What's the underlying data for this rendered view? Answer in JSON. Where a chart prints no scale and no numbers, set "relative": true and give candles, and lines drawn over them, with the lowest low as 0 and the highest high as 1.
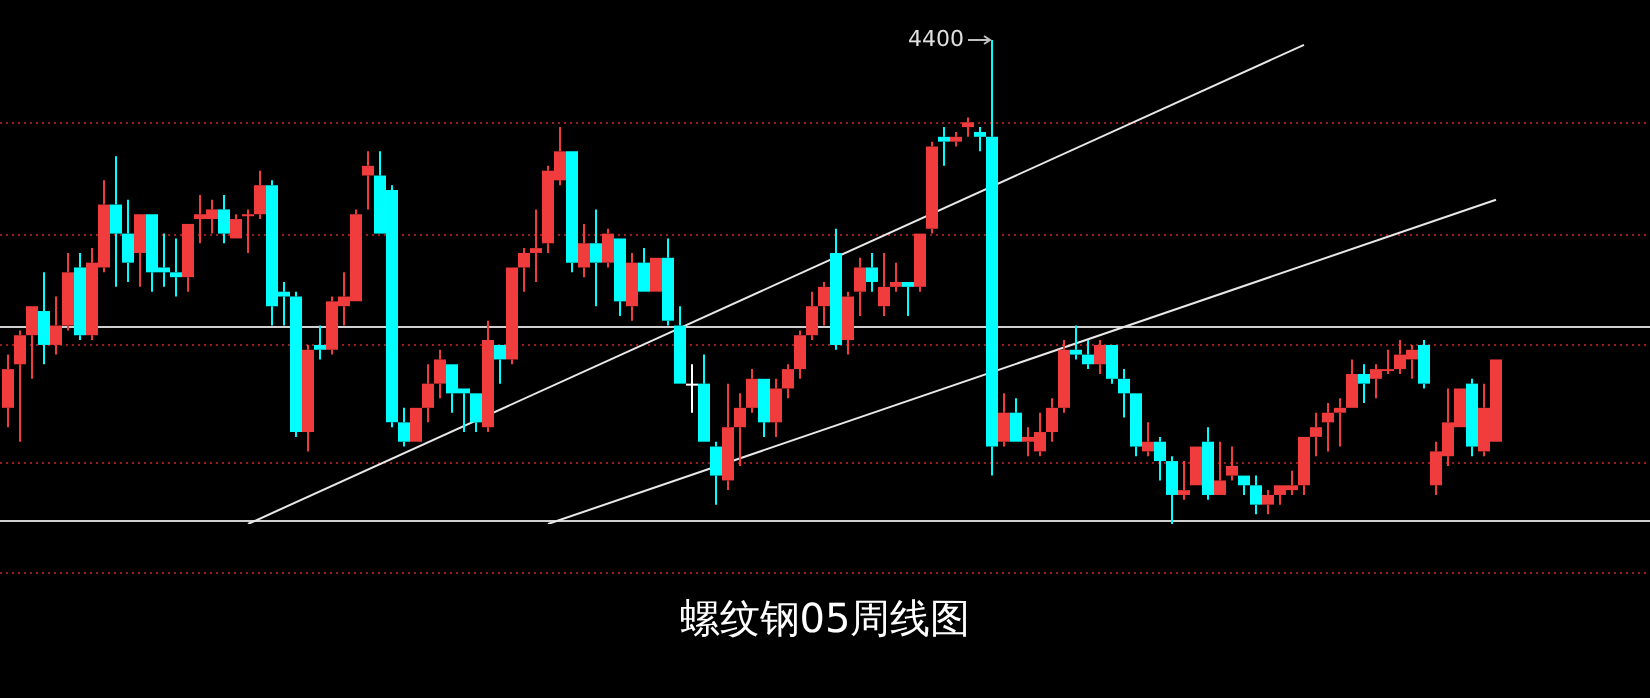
{
  "chart_data": {
    "type": "candlestick",
    "title": "螺纹钢05周线图",
    "relative": true,
    "legend": false,
    "categories": [
      null,
      null,
      null,
      null,
      null,
      null,
      null,
      null,
      null,
      null,
      null,
      null,
      null,
      null,
      null,
      null,
      null,
      null,
      null,
      null,
      null,
      null,
      null,
      null,
      null,
      null,
      null,
      null,
      null,
      null,
      null,
      null,
      null,
      null,
      null,
      null,
      null,
      null,
      null,
      null,
      null,
      null,
      null,
      null,
      null,
      null,
      null,
      null,
      null,
      null,
      null,
      null,
      null,
      null,
      null,
      null,
      null,
      null,
      null,
      null,
      null,
      null,
      null,
      null,
      null,
      null,
      null,
      null,
      null,
      null,
      null,
      null,
      null,
      null,
      null,
      null,
      null,
      null,
      null,
      null,
      null,
      null,
      null,
      null,
      null,
      null,
      null,
      null,
      null,
      null,
      null,
      null,
      null,
      null,
      null,
      null,
      null,
      null,
      null,
      null,
      null,
      null,
      null,
      null,
      null,
      null,
      null,
      null,
      null,
      null,
      null,
      null,
      null,
      null,
      null,
      null,
      null,
      null,
      null,
      null,
      null,
      null,
      null,
      null,
      null
    ],
    "ohlc": [
      [
        0.24,
        0.35,
        0.2,
        0.32
      ],
      [
        0.33,
        0.4,
        0.17,
        0.39
      ],
      [
        0.39,
        0.45,
        0.3,
        0.45
      ],
      [
        0.44,
        0.52,
        0.33,
        0.37
      ],
      [
        0.37,
        0.47,
        0.35,
        0.41
      ],
      [
        0.41,
        0.56,
        0.4,
        0.52
      ],
      [
        0.53,
        0.56,
        0.38,
        0.39
      ],
      [
        0.39,
        0.57,
        0.38,
        0.54
      ],
      [
        0.53,
        0.71,
        0.52,
        0.66
      ],
      [
        0.66,
        0.76,
        0.49,
        0.6
      ],
      [
        0.6,
        0.67,
        0.5,
        0.54
      ],
      [
        0.56,
        0.64,
        0.49,
        0.64
      ],
      [
        0.64,
        0.64,
        0.48,
        0.52
      ],
      [
        0.53,
        0.6,
        0.49,
        0.52
      ],
      [
        0.52,
        0.59,
        0.47,
        0.51
      ],
      [
        0.51,
        0.62,
        0.48,
        0.62
      ],
      [
        0.63,
        0.68,
        0.58,
        0.64
      ],
      [
        0.63,
        0.67,
        0.6,
        0.65
      ],
      [
        0.65,
        0.68,
        0.58,
        0.6
      ],
      [
        0.59,
        0.64,
        0.59,
        0.63
      ],
      [
        0.64,
        0.65,
        0.56,
        0.64
      ],
      [
        0.64,
        0.73,
        0.63,
        0.7
      ],
      [
        0.7,
        0.71,
        0.41,
        0.45
      ],
      [
        0.48,
        0.5,
        0.41,
        0.47
      ],
      [
        0.47,
        0.48,
        0.18,
        0.19
      ],
      [
        0.19,
        0.37,
        0.15,
        0.36
      ],
      [
        0.37,
        0.41,
        0.34,
        0.36
      ],
      [
        0.36,
        0.47,
        0.35,
        0.46
      ],
      [
        0.45,
        0.52,
        0.41,
        0.47
      ],
      [
        0.46,
        0.65,
        0.46,
        0.64
      ],
      [
        0.72,
        0.77,
        0.65,
        0.74
      ],
      [
        0.72,
        0.77,
        0.6,
        0.6
      ],
      [
        0.69,
        0.7,
        0.2,
        0.21
      ],
      [
        0.21,
        0.24,
        0.16,
        0.17
      ],
      [
        0.17,
        0.24,
        0.17,
        0.24
      ],
      [
        0.24,
        0.33,
        0.21,
        0.29
      ],
      [
        0.29,
        0.36,
        0.26,
        0.34
      ],
      [
        0.33,
        0.33,
        0.23,
        0.27
      ],
      [
        0.28,
        0.28,
        0.19,
        0.27
      ],
      [
        0.27,
        0.27,
        0.19,
        0.21
      ],
      [
        0.2,
        0.42,
        0.19,
        0.38
      ],
      [
        0.37,
        0.37,
        0.29,
        0.34
      ],
      [
        0.34,
        0.53,
        0.33,
        0.53
      ],
      [
        0.53,
        0.57,
        0.48,
        0.56
      ],
      [
        0.56,
        0.65,
        0.5,
        0.57
      ],
      [
        0.58,
        0.74,
        0.56,
        0.73
      ],
      [
        0.71,
        0.82,
        0.7,
        0.77
      ],
      [
        0.77,
        0.77,
        0.52,
        0.54
      ],
      [
        0.53,
        0.62,
        0.51,
        0.58
      ],
      [
        0.58,
        0.65,
        0.45,
        0.54
      ],
      [
        0.54,
        0.61,
        0.53,
        0.6
      ],
      [
        0.59,
        0.59,
        0.43,
        0.46
      ],
      [
        0.45,
        0.56,
        0.42,
        0.54
      ],
      [
        0.54,
        0.57,
        0.48,
        0.48
      ],
      [
        0.48,
        0.55,
        0.48,
        0.55
      ],
      [
        0.55,
        0.59,
        0.41,
        0.42
      ],
      [
        0.41,
        0.45,
        0.29,
        0.29
      ],
      [
        0.29,
        0.33,
        0.23,
        0.29
      ],
      [
        0.29,
        0.35,
        0.17,
        0.17
      ],
      [
        0.16,
        0.17,
        0.04,
        0.1
      ],
      [
        0.09,
        0.29,
        0.07,
        0.2
      ],
      [
        0.2,
        0.27,
        0.12,
        0.24
      ],
      [
        0.24,
        0.32,
        0.23,
        0.3
      ],
      [
        0.3,
        0.3,
        0.18,
        0.21
      ],
      [
        0.21,
        0.3,
        0.18,
        0.28
      ],
      [
        0.28,
        0.33,
        0.26,
        0.32
      ],
      [
        0.32,
        0.4,
        0.3,
        0.39
      ],
      [
        0.39,
        0.48,
        0.38,
        0.45
      ],
      [
        0.45,
        0.5,
        0.41,
        0.49
      ],
      [
        0.56,
        0.61,
        0.36,
        0.37
      ],
      [
        0.38,
        0.48,
        0.35,
        0.47
      ],
      [
        0.48,
        0.55,
        0.43,
        0.53
      ],
      [
        0.53,
        0.56,
        0.48,
        0.5
      ],
      [
        0.45,
        0.56,
        0.43,
        0.49
      ],
      [
        0.49,
        0.54,
        0.48,
        0.5
      ],
      [
        0.5,
        0.5,
        0.43,
        0.49
      ],
      [
        0.49,
        0.6,
        0.48,
        0.6
      ],
      [
        0.61,
        0.79,
        0.6,
        0.78
      ],
      [
        0.8,
        0.82,
        0.74,
        0.79
      ],
      [
        0.79,
        0.81,
        0.78,
        0.8
      ],
      [
        0.82,
        0.84,
        0.8,
        0.83
      ],
      [
        0.81,
        0.82,
        0.77,
        0.8
      ],
      [
        0.8,
        1,
        0.1,
        0.16
      ],
      [
        0.17,
        0.27,
        0.16,
        0.23
      ],
      [
        0.23,
        0.26,
        0.17,
        0.17
      ],
      [
        0.17,
        0.2,
        0.14,
        0.18
      ],
      [
        0.15,
        0.23,
        0.14,
        0.19
      ],
      [
        0.19,
        0.26,
        0.17,
        0.24
      ],
      [
        0.24,
        0.38,
        0.23,
        0.36
      ],
      [
        0.36,
        0.41,
        0.34,
        0.35
      ],
      [
        0.35,
        0.38,
        0.32,
        0.33
      ],
      [
        0.33,
        0.38,
        0.31,
        0.37
      ],
      [
        0.37,
        0.37,
        0.29,
        0.3
      ],
      [
        0.3,
        0.32,
        0.22,
        0.27
      ],
      [
        0.27,
        0.27,
        0.14,
        0.16
      ],
      [
        0.15,
        0.21,
        0.14,
        0.17
      ],
      [
        0.17,
        0.18,
        0.09,
        0.13
      ],
      [
        0.13,
        0.14,
        0,
        0.06
      ],
      [
        0.06,
        0.13,
        0.05,
        0.07
      ],
      [
        0.08,
        0.16,
        0.08,
        0.16
      ],
      [
        0.17,
        0.2,
        0.05,
        0.06
      ],
      [
        0.06,
        0.17,
        0.06,
        0.09
      ],
      [
        0.1,
        0.16,
        0.09,
        0.12
      ],
      [
        0.1,
        0.1,
        0.06,
        0.08
      ],
      [
        0.08,
        0.1,
        0.02,
        0.04
      ],
      [
        0.04,
        0.07,
        0.02,
        0.06
      ],
      [
        0.06,
        0.08,
        0.04,
        0.08
      ],
      [
        0.07,
        0.11,
        0.06,
        0.08
      ],
      [
        0.08,
        0.18,
        0.06,
        0.18
      ],
      [
        0.18,
        0.23,
        0.14,
        0.2
      ],
      [
        0.21,
        0.25,
        0.15,
        0.23
      ],
      [
        0.23,
        0.26,
        0.16,
        0.24
      ],
      [
        0.24,
        0.34,
        0.24,
        0.31
      ],
      [
        0.31,
        0.33,
        0.25,
        0.29
      ],
      [
        0.3,
        0.33,
        0.26,
        0.32
      ],
      [
        0.32,
        0.36,
        0.31,
        0.32
      ],
      [
        0.32,
        0.38,
        0.31,
        0.35
      ],
      [
        0.34,
        0.37,
        0.3,
        0.36
      ],
      [
        0.37,
        0.38,
        0.28,
        0.29
      ],
      [
        0.08,
        0.17,
        0.06,
        0.15
      ],
      [
        0.14,
        0.28,
        0.12,
        0.21
      ],
      [
        0.2,
        0.28,
        0.2,
        0.28
      ],
      [
        0.29,
        0.3,
        0.14,
        0.16
      ],
      [
        0.15,
        0.29,
        0.14,
        0.24
      ],
      [
        0.17,
        0.34,
        0.17,
        0.34
      ]
    ],
    "colors": [
      "#f03c3c",
      "#f03c3c",
      "#f03c3c",
      "#00ffff",
      "#f03c3c",
      "#f03c3c",
      "#00ffff",
      "#f03c3c",
      "#f03c3c",
      "#00ffff",
      "#00ffff",
      "#f03c3c",
      "#00ffff",
      "#00ffff",
      "#00ffff",
      "#f03c3c",
      "#f03c3c",
      "#f03c3c",
      "#00ffff",
      "#f03c3c",
      "#f03c3c",
      "#f03c3c",
      "#00ffff",
      "#00ffff",
      "#00ffff",
      "#f03c3c",
      "#00ffff",
      "#f03c3c",
      "#f03c3c",
      "#f03c3c",
      "#f03c3c",
      "#00ffff",
      "#00ffff",
      "#00ffff",
      "#f03c3c",
      "#f03c3c",
      "#f03c3c",
      "#00ffff",
      "#00ffff",
      "#00ffff",
      "#f03c3c",
      "#00ffff",
      "#f03c3c",
      "#f03c3c",
      "#f03c3c",
      "#f03c3c",
      "#f03c3c",
      "#00ffff",
      "#f03c3c",
      "#00ffff",
      "#f03c3c",
      "#00ffff",
      "#f03c3c",
      "#00ffff",
      "#f03c3c",
      "#00ffff",
      "#00ffff",
      "#ffffff",
      "#00ffff",
      "#00ffff",
      "#f03c3c",
      "#f03c3c",
      "#f03c3c",
      "#00ffff",
      "#f03c3c",
      "#f03c3c",
      "#f03c3c",
      "#f03c3c",
      "#f03c3c",
      "#00ffff",
      "#f03c3c",
      "#f03c3c",
      "#00ffff",
      "#f03c3c",
      "#f03c3c",
      "#00ffff",
      "#f03c3c",
      "#f03c3c",
      "#00ffff",
      "#f03c3c",
      "#f03c3c",
      "#00ffff",
      "#00ffff",
      "#f03c3c",
      "#00ffff",
      "#f03c3c",
      "#f03c3c",
      "#f03c3c",
      "#f03c3c",
      "#00ffff",
      "#00ffff",
      "#f03c3c",
      "#00ffff",
      "#00ffff",
      "#00ffff",
      "#f03c3c",
      "#00ffff",
      "#00ffff",
      "#f03c3c",
      "#f03c3c",
      "#00ffff",
      "#f03c3c",
      "#f03c3c",
      "#00ffff",
      "#00ffff",
      "#f03c3c",
      "#f03c3c",
      "#f03c3c",
      "#f03c3c",
      "#f03c3c",
      "#f03c3c",
      "#f03c3c",
      "#f03c3c",
      "#00ffff",
      "#f03c3c",
      "#f03c3c",
      "#f03c3c",
      "#f03c3c",
      "#00ffff",
      "#f03c3c",
      "#f03c3c",
      "#f03c3c",
      "#00ffff",
      "#f03c3c",
      "#f03c3c"
    ],
    "series": [
      {
        "type": "line",
        "color": "#e8e8e8",
        "values": [
          null,
          null,
          null,
          null,
          null,
          null,
          null,
          null,
          null,
          null,
          null,
          null,
          null,
          null,
          null,
          null,
          null,
          null,
          null,
          null,
          0,
          null,
          null,
          null,
          null,
          null,
          null,
          null,
          null,
          null,
          null,
          null,
          null,
          null,
          null,
          null,
          null,
          null,
          null,
          null,
          null,
          null,
          null,
          null,
          null,
          null,
          null,
          null,
          null,
          null,
          null,
          null,
          null,
          null,
          null,
          null,
          null,
          null,
          null,
          null,
          null,
          null,
          null,
          null,
          null,
          null,
          null,
          null,
          null,
          null,
          null,
          null,
          null,
          null,
          null,
          null,
          null,
          null,
          null,
          null,
          null,
          null,
          null,
          null,
          null,
          null,
          null,
          null,
          null,
          null,
          null,
          null,
          null,
          null,
          null,
          null,
          null,
          null,
          null,
          null,
          null,
          null,
          null,
          null,
          null,
          null,
          null,
          null,
          0.99,
          null,
          null,
          null,
          null,
          null,
          null,
          null,
          null,
          null,
          null,
          null,
          null,
          null,
          null,
          null,
          null
        ]
      },
      {
        "type": "line",
        "color": "#e8e8e8",
        "values": [
          null,
          null,
          null,
          null,
          null,
          null,
          null,
          null,
          null,
          null,
          null,
          null,
          null,
          null,
          null,
          null,
          null,
          null,
          null,
          null,
          null,
          null,
          null,
          null,
          null,
          null,
          null,
          null,
          null,
          null,
          null,
          null,
          null,
          null,
          null,
          null,
          null,
          null,
          null,
          null,
          null,
          null,
          null,
          null,
          null,
          0,
          null,
          null,
          null,
          null,
          null,
          null,
          null,
          null,
          null,
          null,
          null,
          null,
          null,
          null,
          null,
          null,
          null,
          null,
          null,
          null,
          null,
          null,
          null,
          null,
          null,
          null,
          null,
          null,
          null,
          null,
          null,
          null,
          null,
          null,
          null,
          null,
          null,
          null,
          null,
          null,
          null,
          null,
          null,
          null,
          null,
          null,
          null,
          null,
          null,
          null,
          null,
          null,
          null,
          null,
          null,
          null,
          null,
          null,
          null,
          null,
          null,
          null,
          null,
          null,
          null,
          null,
          null,
          null,
          null,
          null,
          null,
          null,
          null,
          null,
          null,
          null,
          null,
          null,
          0.67
        ]
      }
    ],
    "ref_lines": [
      {
        "axis": "y",
        "value": 0.41,
        "color": "#d0d0d0"
      },
      {
        "axis": "y",
        "value": 0.01,
        "color": "#d0d0d0"
      },
      {
        "axis": "y",
        "value": 0.83,
        "color": "#9a1e1e",
        "line_style": "dotted"
      },
      {
        "axis": "y",
        "value": 0.6,
        "color": "#9a1e1e",
        "line_style": "dotted"
      },
      {
        "axis": "y",
        "value": 0.37,
        "color": "#9a1e1e",
        "line_style": "dotted"
      },
      {
        "axis": "y",
        "value": 0.13,
        "color": "#9a1e1e",
        "line_style": "dotted"
      },
      {
        "axis": "y",
        "value": -0.1,
        "color": "#9a1e1e",
        "line_style": "dotted"
      }
    ],
    "annotations": [
      "4400"
    ]
  }
}
